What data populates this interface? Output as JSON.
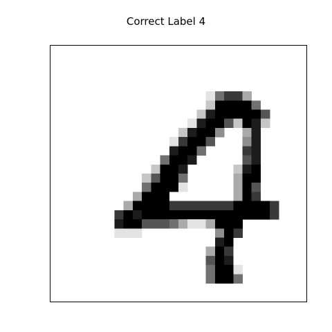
{
  "figure": {
    "title": "Correct Label 4"
  },
  "image": {
    "rows": 28,
    "cols": 28,
    "colormap": "gray_r",
    "pixels": [
      "0000000000000000000000000000",
      "0000000000000000000000000000",
      "0000000000000000000000000000",
      "0000000000000000000000000000",
      "0000000000000000000000000000",
      "0000000000000000015773000000",
      "0000000000000000029999500000",
      "0000000000000000289999960000",
      "0000000000000001899629820000",
      "0000000000000028994003800000",
      "0000000000000179960004800000",
      "0000000000000899500007800000",
      "0000000000005998000006800000",
      "0000000000029980000028900000",
      "0000000000269950000039900000",
      "0000000000599910000039600000",
      "0000000003999000000039700000",
      "0000000039999777777799997000",
      "0000000798999999999999997000",
      "0000000899666531139990000000",
      "0000000111000000004970000000",
      "0000000000000000008900000000",
      "0000000000000000039700000000",
      "0000000000000000069800000000",
      "0000000000000000059910000000",
      "0000000000000000059950000000",
      "0000000000000000000000000000",
      "0000000000000000000000000000"
    ]
  }
}
